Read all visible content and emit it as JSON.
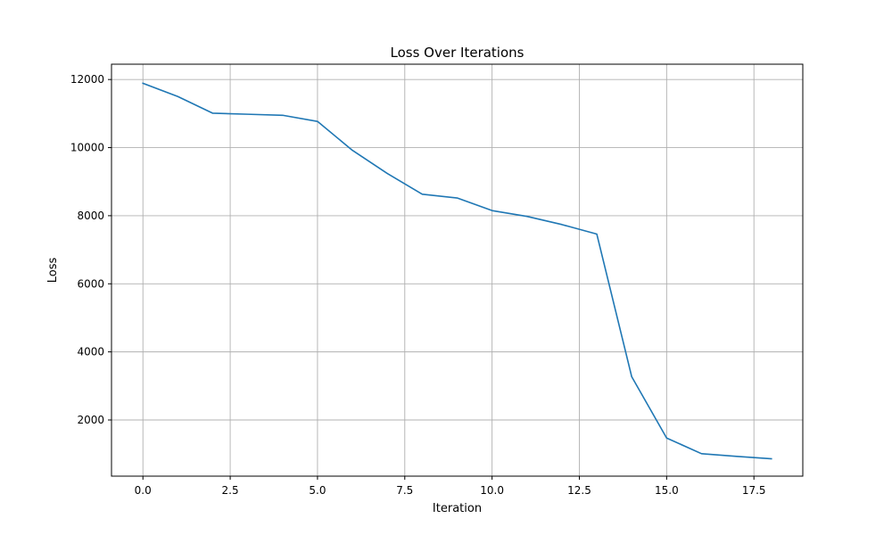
{
  "chart_data": {
    "type": "line",
    "title": "Loss Over Iterations",
    "xlabel": "Iteration",
    "ylabel": "Loss",
    "xlim": [
      -0.9,
      18.9
    ],
    "ylim": [
      350,
      12450
    ],
    "xticks": [
      0.0,
      2.5,
      5.0,
      7.5,
      10.0,
      12.5,
      15.0,
      17.5
    ],
    "xtick_labels": [
      "0.0",
      "2.5",
      "5.0",
      "7.5",
      "10.0",
      "12.5",
      "15.0",
      "17.5"
    ],
    "yticks": [
      2000,
      4000,
      6000,
      8000,
      10000,
      12000
    ],
    "ytick_labels": [
      "2000",
      "4000",
      "6000",
      "8000",
      "10000",
      "12000"
    ],
    "grid": true,
    "series": [
      {
        "color": "#1f77b4",
        "x": [
          0,
          1,
          2,
          3,
          4,
          5,
          6,
          7,
          8,
          9,
          10,
          11,
          12,
          13,
          14,
          15,
          16,
          17,
          18
        ],
        "values": [
          11890,
          11500,
          11010,
          10980,
          10950,
          10770,
          9920,
          9240,
          8630,
          8520,
          8150,
          7980,
          7740,
          7460,
          3270,
          1470,
          1010,
          930,
          860
        ]
      }
    ]
  }
}
